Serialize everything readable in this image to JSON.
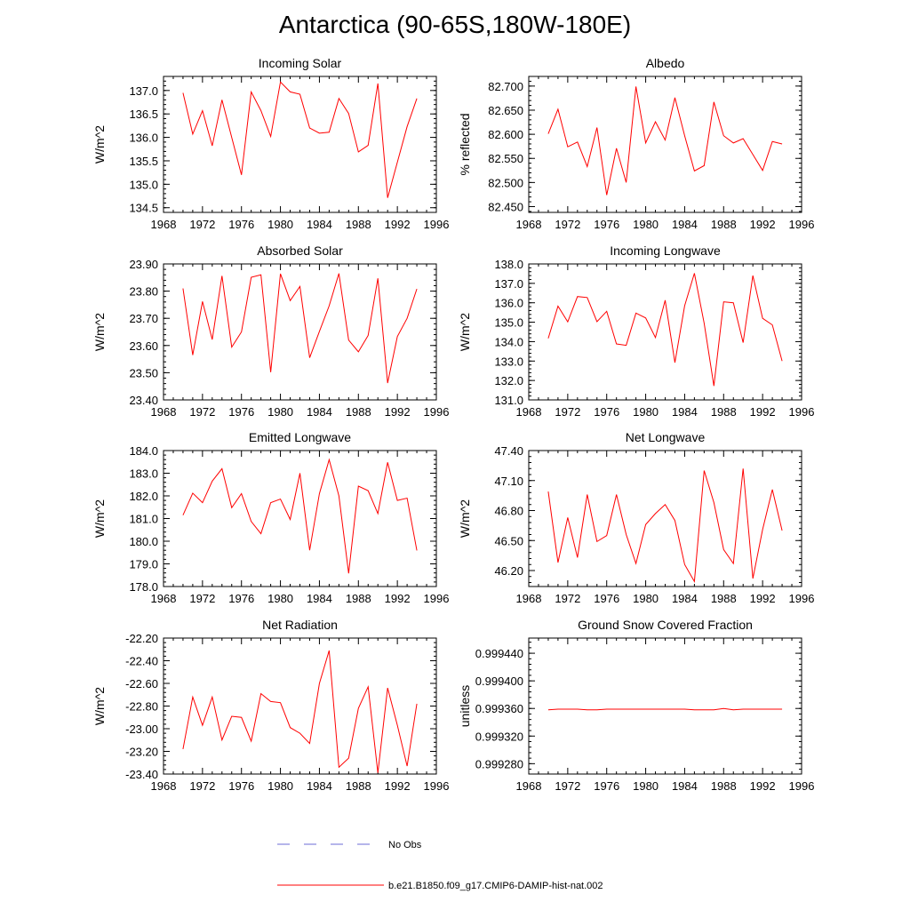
{
  "figure": {
    "title": "Antarctica (90-65S,180W-180E)"
  },
  "legend": {
    "items": [
      {
        "label": "No Obs",
        "color": "#6b6bd6",
        "style": "dashed"
      },
      {
        "label": "b.e21.B1850.f09_g17.CMIP6-DAMIP-hist-nat.002",
        "color": "#ff0000",
        "style": "solid"
      }
    ]
  },
  "chart_data": [
    {
      "type": "line",
      "title": "Incoming Solar",
      "xlabel": "",
      "ylabel": "W/m^2",
      "xlim": [
        1968,
        1996
      ],
      "ylim": [
        134.4,
        137.3
      ],
      "xticks": [
        1968,
        1972,
        1976,
        1980,
        1984,
        1988,
        1992,
        1996
      ],
      "yticks": [
        134.5,
        135.0,
        135.5,
        136.0,
        136.5,
        137.0
      ],
      "ytick_labels": [
        "134.5",
        "135.0",
        "135.5",
        "136.0",
        "136.5",
        "137.0"
      ],
      "y_minor_step": 0.1,
      "color": "#ff0000",
      "x": [
        1970,
        1971,
        1972,
        1973,
        1974,
        1975,
        1976,
        1977,
        1978,
        1979,
        1980,
        1981,
        1982,
        1983,
        1984,
        1985,
        1986,
        1987,
        1988,
        1989,
        1990,
        1991,
        1992,
        1993,
        1994
      ],
      "y": [
        136.95,
        136.07,
        136.57,
        135.82,
        136.8,
        136.0,
        135.2,
        136.97,
        136.57,
        136.02,
        137.18,
        136.97,
        136.92,
        136.2,
        136.09,
        136.11,
        136.83,
        136.51,
        135.69,
        135.83,
        137.15,
        134.71,
        135.47,
        136.23,
        136.83
      ]
    },
    {
      "type": "line",
      "title": "Albedo",
      "xlabel": "",
      "ylabel": "% reflected",
      "xlim": [
        1968,
        1996
      ],
      "ylim": [
        82.438,
        82.72
      ],
      "xticks": [
        1968,
        1972,
        1976,
        1980,
        1984,
        1988,
        1992,
        1996
      ],
      "yticks": [
        82.45,
        82.5,
        82.55,
        82.6,
        82.65,
        82.7
      ],
      "ytick_labels": [
        "82.450",
        "82.500",
        "82.550",
        "82.600",
        "82.650",
        "82.700"
      ],
      "y_minor_step": 0.01,
      "color": "#ff0000",
      "x": [
        1970,
        1971,
        1972,
        1973,
        1974,
        1975,
        1976,
        1977,
        1978,
        1979,
        1980,
        1981,
        1982,
        1983,
        1984,
        1985,
        1986,
        1987,
        1988,
        1989,
        1990,
        1991,
        1992,
        1993,
        1994
      ],
      "y": [
        82.601,
        82.652,
        82.574,
        82.584,
        82.533,
        82.614,
        82.474,
        82.571,
        82.5,
        82.699,
        82.582,
        82.626,
        82.588,
        82.676,
        82.597,
        82.524,
        82.535,
        82.667,
        82.597,
        82.582,
        82.591,
        82.558,
        82.525,
        82.585,
        82.58
      ]
    },
    {
      "type": "line",
      "title": "Absorbed Solar",
      "xlabel": "",
      "ylabel": "W/m^2",
      "xlim": [
        1968,
        1996
      ],
      "ylim": [
        23.4,
        23.9
      ],
      "xticks": [
        1968,
        1972,
        1976,
        1980,
        1984,
        1988,
        1992,
        1996
      ],
      "yticks": [
        23.4,
        23.5,
        23.6,
        23.7,
        23.8,
        23.9
      ],
      "ytick_labels": [
        "23.40",
        "23.50",
        "23.60",
        "23.70",
        "23.80",
        "23.90"
      ],
      "y_minor_step": 0.02,
      "color": "#ff0000",
      "x": [
        1970,
        1971,
        1972,
        1973,
        1974,
        1975,
        1976,
        1977,
        1978,
        1979,
        1980,
        1981,
        1982,
        1983,
        1984,
        1985,
        1986,
        1987,
        1988,
        1989,
        1990,
        1991,
        1992,
        1993,
        1994
      ],
      "y": [
        23.81,
        23.565,
        23.762,
        23.622,
        23.856,
        23.594,
        23.65,
        23.851,
        23.86,
        23.502,
        23.864,
        23.765,
        23.817,
        23.555,
        23.652,
        23.746,
        23.865,
        23.62,
        23.577,
        23.637,
        23.847,
        23.462,
        23.633,
        23.7,
        23.808
      ]
    },
    {
      "type": "line",
      "title": "Incoming Longwave",
      "xlabel": "",
      "ylabel": "W/m^2",
      "xlim": [
        1968,
        1996
      ],
      "ylim": [
        131.0,
        138.0
      ],
      "xticks": [
        1968,
        1972,
        1976,
        1980,
        1984,
        1988,
        1992,
        1996
      ],
      "yticks": [
        131.0,
        132.0,
        133.0,
        134.0,
        135.0,
        136.0,
        137.0,
        138.0
      ],
      "ytick_labels": [
        "131.0",
        "132.0",
        "133.0",
        "134.0",
        "135.0",
        "136.0",
        "137.0",
        "138.0"
      ],
      "y_minor_step": 0.2,
      "color": "#ff0000",
      "x": [
        1970,
        1971,
        1972,
        1973,
        1974,
        1975,
        1976,
        1977,
        1978,
        1979,
        1980,
        1981,
        1982,
        1983,
        1984,
        1985,
        1986,
        1987,
        1988,
        1989,
        1990,
        1991,
        1992,
        1993,
        1994
      ],
      "y": [
        134.17,
        135.83,
        135.02,
        136.32,
        136.27,
        135.03,
        135.56,
        133.88,
        133.81,
        135.47,
        135.22,
        134.21,
        136.13,
        132.92,
        135.85,
        137.52,
        134.95,
        131.72,
        136.05,
        136.0,
        133.95,
        137.4,
        135.2,
        134.86,
        133.0
      ]
    },
    {
      "type": "line",
      "title": "Emitted Longwave",
      "xlabel": "",
      "ylabel": "W/m^2",
      "xlim": [
        1968,
        1996
      ],
      "ylim": [
        178.0,
        184.0
      ],
      "xticks": [
        1968,
        1972,
        1976,
        1980,
        1984,
        1988,
        1992,
        1996
      ],
      "yticks": [
        178.0,
        179.0,
        180.0,
        181.0,
        182.0,
        183.0,
        184.0
      ],
      "ytick_labels": [
        "178.0",
        "179.0",
        "180.0",
        "181.0",
        "182.0",
        "183.0",
        "184.0"
      ],
      "y_minor_step": 0.2,
      "color": "#ff0000",
      "x": [
        1970,
        1971,
        1972,
        1973,
        1974,
        1975,
        1976,
        1977,
        1978,
        1979,
        1980,
        1981,
        1982,
        1983,
        1984,
        1985,
        1986,
        1987,
        1988,
        1989,
        1990,
        1991,
        1992,
        1993,
        1994
      ],
      "y": [
        181.15,
        182.12,
        181.7,
        182.65,
        183.2,
        181.48,
        182.1,
        180.87,
        180.33,
        181.7,
        181.86,
        180.96,
        183.0,
        179.6,
        182.1,
        183.6,
        182.0,
        178.58,
        182.43,
        182.23,
        181.22,
        183.48,
        181.8,
        181.9,
        179.59
      ]
    },
    {
      "type": "line",
      "title": "Net Longwave",
      "xlabel": "",
      "ylabel": "W/m^2",
      "xlim": [
        1968,
        1996
      ],
      "ylim": [
        46.04,
        47.4
      ],
      "xticks": [
        1968,
        1972,
        1976,
        1980,
        1984,
        1988,
        1992,
        1996
      ],
      "yticks": [
        46.2,
        46.5,
        46.8,
        47.1,
        47.4
      ],
      "ytick_labels": [
        "46.20",
        "46.50",
        "46.80",
        "47.10",
        "47.40"
      ],
      "y_minor_step": 0.06,
      "color": "#ff0000",
      "x": [
        1970,
        1971,
        1972,
        1973,
        1974,
        1975,
        1976,
        1977,
        1978,
        1979,
        1980,
        1981,
        1982,
        1983,
        1984,
        1985,
        1986,
        1987,
        1988,
        1989,
        1990,
        1991,
        1992,
        1993,
        1994
      ],
      "y": [
        46.99,
        46.28,
        46.73,
        46.33,
        46.96,
        46.49,
        46.55,
        46.96,
        46.56,
        46.27,
        46.66,
        46.77,
        46.86,
        46.7,
        46.26,
        46.09,
        47.2,
        46.88,
        46.41,
        46.27,
        47.22,
        46.12,
        46.61,
        47.01,
        46.6
      ]
    },
    {
      "type": "line",
      "title": "Net Radiation",
      "xlabel": "",
      "ylabel": "W/m^2",
      "xlim": [
        1968,
        1996
      ],
      "ylim": [
        -23.4,
        -22.2
      ],
      "xticks": [
        1968,
        1972,
        1976,
        1980,
        1984,
        1988,
        1992,
        1996
      ],
      "yticks": [
        -23.4,
        -23.2,
        -23.0,
        -22.8,
        -22.6,
        -22.4,
        -22.2
      ],
      "ytick_labels": [
        "-23.40",
        "-23.20",
        "-23.00",
        "-22.80",
        "-22.60",
        "-22.40",
        "-22.20"
      ],
      "y_minor_step": 0.04,
      "color": "#ff0000",
      "x": [
        1970,
        1971,
        1972,
        1973,
        1974,
        1975,
        1976,
        1977,
        1978,
        1979,
        1980,
        1981,
        1982,
        1983,
        1984,
        1985,
        1986,
        1987,
        1988,
        1989,
        1990,
        1991,
        1992,
        1993,
        1994
      ],
      "y": [
        -23.18,
        -22.72,
        -22.97,
        -22.72,
        -23.1,
        -22.89,
        -22.9,
        -23.11,
        -22.69,
        -22.76,
        -22.77,
        -22.99,
        -23.04,
        -23.13,
        -22.6,
        -22.31,
        -23.34,
        -23.26,
        -22.82,
        -22.63,
        -23.39,
        -22.64,
        -22.97,
        -23.33,
        -22.78
      ]
    },
    {
      "type": "line",
      "title": "Ground Snow Covered Fraction",
      "xlabel": "",
      "ylabel": "unitless",
      "xlim": [
        1968,
        1996
      ],
      "ylim": [
        0.999265,
        0.999462
      ],
      "xticks": [
        1968,
        1972,
        1976,
        1980,
        1984,
        1988,
        1992,
        1996
      ],
      "yticks": [
        0.99928,
        0.99932,
        0.99936,
        0.9994,
        0.99944
      ],
      "ytick_labels": [
        "0.999280",
        "0.999320",
        "0.999360",
        "0.999400",
        "0.999440"
      ],
      "y_minor_step": 8e-06,
      "color": "#ff0000",
      "x": [
        1970,
        1971,
        1972,
        1973,
        1974,
        1975,
        1976,
        1977,
        1978,
        1979,
        1980,
        1981,
        1982,
        1983,
        1984,
        1985,
        1986,
        1987,
        1988,
        1989,
        1990,
        1991,
        1992,
        1993,
        1994
      ],
      "y": [
        0.999358,
        0.999359,
        0.999359,
        0.999359,
        0.999358,
        0.999358,
        0.999359,
        0.999359,
        0.999359,
        0.999359,
        0.999359,
        0.999359,
        0.999359,
        0.999359,
        0.999359,
        0.999358,
        0.999358,
        0.999358,
        0.99936,
        0.999358,
        0.999359,
        0.999359,
        0.999359,
        0.999359,
        0.999359
      ]
    }
  ]
}
